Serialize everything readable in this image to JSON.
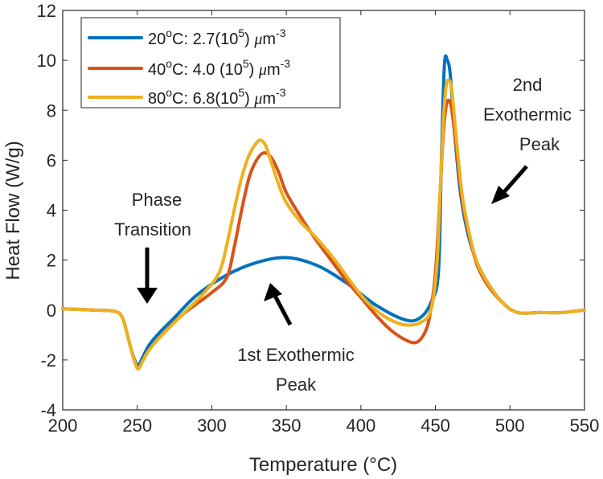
{
  "chart_data": {
    "type": "line",
    "title": "",
    "xlabel": "Temperature (°C)",
    "ylabel": "Heat Flow (W/g)",
    "xlim": [
      200,
      550
    ],
    "ylim": [
      -4,
      12
    ],
    "xticks": [
      200,
      250,
      300,
      350,
      400,
      450,
      500,
      550
    ],
    "yticks": [
      -4,
      -2,
      0,
      2,
      4,
      6,
      8,
      10,
      12
    ],
    "grid": false,
    "legend_position": "top-left",
    "series": [
      {
        "name": "20°C: 2.7(10^5) μm^-3",
        "legend": {
          "a": "20",
          "b": "C: 2.7(10",
          "c": "5",
          "d": ") ",
          "e": "μ",
          "f": "m",
          "g": "-3"
        },
        "color": "#0072BD",
        "x": [
          200,
          220,
          235,
          240,
          243,
          246,
          249,
          251,
          254,
          258,
          265,
          275,
          290,
          310,
          330,
          350,
          370,
          390,
          410,
          430,
          440,
          447,
          452,
          454,
          456,
          458,
          460,
          463,
          467,
          472,
          478,
          485,
          495,
          505,
          520,
          535,
          550
        ],
        "y": [
          0.05,
          0.0,
          -0.05,
          -0.3,
          -0.9,
          -1.6,
          -2.1,
          -2.2,
          -1.85,
          -1.4,
          -0.9,
          -0.3,
          0.6,
          1.4,
          1.9,
          2.1,
          1.8,
          1.1,
          0.2,
          -0.4,
          -0.3,
          0.3,
          1.5,
          6.0,
          9.8,
          10.0,
          9.4,
          7.0,
          4.6,
          3.0,
          1.9,
          1.1,
          0.3,
          -0.1,
          -0.1,
          -0.1,
          0.0
        ]
      },
      {
        "name": "40°C: 4.0 (10^5) μm^-3",
        "legend": {
          "a": "40",
          "b": "C: 4.0 (10",
          "c": "5",
          "d": ") ",
          "e": "μ",
          "f": "m",
          "g": "-3"
        },
        "color": "#D95319",
        "x": [
          200,
          220,
          235,
          240,
          243,
          246,
          249,
          251,
          254,
          258,
          265,
          280,
          300,
          310,
          315,
          320,
          325,
          330,
          335,
          340,
          345,
          350,
          360,
          370,
          380,
          390,
          400,
          410,
          420,
          430,
          437,
          442,
          446,
          450,
          453,
          455,
          457,
          459,
          461,
          464,
          468,
          473,
          478,
          485,
          495,
          505,
          520,
          535,
          550
        ],
        "y": [
          0.05,
          0.0,
          -0.05,
          -0.3,
          -0.9,
          -1.6,
          -2.2,
          -2.35,
          -2.0,
          -1.6,
          -1.1,
          -0.2,
          0.7,
          1.3,
          2.5,
          4.0,
          5.3,
          6.0,
          6.3,
          6.1,
          5.5,
          4.7,
          3.7,
          2.8,
          2.0,
          1.2,
          0.5,
          -0.2,
          -0.8,
          -1.2,
          -1.3,
          -1.0,
          -0.3,
          1.5,
          4.5,
          6.8,
          8.1,
          8.4,
          8.0,
          6.5,
          4.4,
          2.9,
          1.8,
          1.0,
          0.3,
          -0.1,
          -0.1,
          -0.1,
          0.0
        ]
      },
      {
        "name": "80°C: 6.8(10^5) μm^-3",
        "legend": {
          "a": "80",
          "b": "C: 6.8(10",
          "c": "5",
          "d": ") ",
          "e": "μ",
          "f": "m",
          "g": "-3"
        },
        "color": "#EDB120",
        "x": [
          200,
          220,
          235,
          240,
          243,
          246,
          249,
          251,
          254,
          258,
          265,
          280,
          295,
          305,
          310,
          315,
          320,
          325,
          330,
          333,
          336,
          340,
          345,
          350,
          360,
          370,
          380,
          390,
          400,
          410,
          420,
          430,
          440,
          447,
          451,
          453,
          455,
          457,
          459,
          461,
          464,
          468,
          473,
          478,
          485,
          495,
          505,
          520,
          535,
          550
        ],
        "y": [
          0.05,
          0.0,
          -0.05,
          -0.3,
          -0.9,
          -1.6,
          -2.2,
          -2.35,
          -2.0,
          -1.6,
          -1.1,
          -0.2,
          0.7,
          1.5,
          2.6,
          4.0,
          5.3,
          6.2,
          6.7,
          6.8,
          6.6,
          5.9,
          5.0,
          4.3,
          3.5,
          2.9,
          2.2,
          1.4,
          0.6,
          0.0,
          -0.4,
          -0.6,
          -0.5,
          0.0,
          1.8,
          4.5,
          7.2,
          8.9,
          9.2,
          8.8,
          6.9,
          4.6,
          3.0,
          1.9,
          1.1,
          0.3,
          -0.1,
          -0.1,
          -0.1,
          0.0
        ]
      }
    ],
    "annotations": [
      {
        "id": "phase",
        "lines": [
          "Phase",
          "Transition"
        ]
      },
      {
        "id": "exo1",
        "lines": [
          "1st Exothermic",
          "Peak"
        ]
      },
      {
        "id": "exo2",
        "lines": [
          "2nd",
          "Exothermic",
          "Peak"
        ]
      }
    ]
  }
}
